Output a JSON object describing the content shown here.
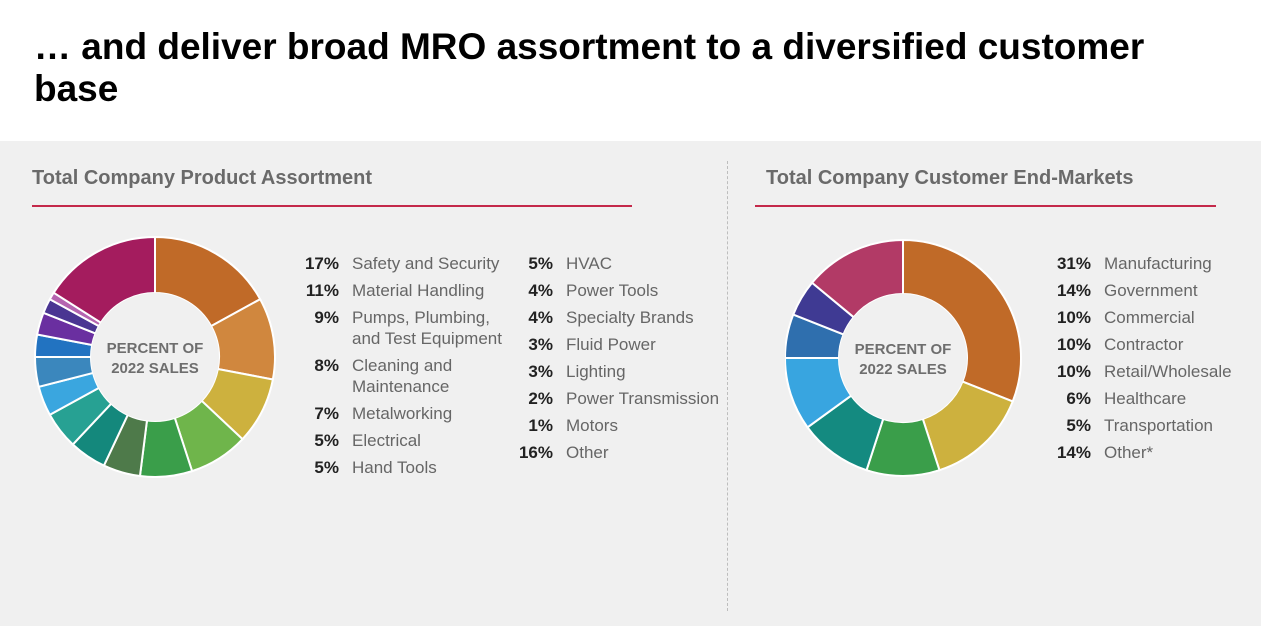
{
  "page": {
    "title": "… and deliver broad MRO assortment to a diversified customer base"
  },
  "chart_data": [
    {
      "type": "pie",
      "title": "Total Company Product Assortment",
      "center_label": [
        "PERCENT OF",
        "2022 SALES"
      ],
      "slices": [
        {
          "label": "Safety and Security",
          "pct_label": "17%",
          "value": 17,
          "color": "#c06a28"
        },
        {
          "label": "Material Handling",
          "pct_label": "11%",
          "value": 11,
          "color": "#d0873e"
        },
        {
          "label": "Pumps, Plumbing, and Test Equipment",
          "pct_label": "9%",
          "value": 9,
          "color": "#cdb13e"
        },
        {
          "label": "Cleaning and Maintenance",
          "pct_label": "8%",
          "value": 8,
          "color": "#6fb54b"
        },
        {
          "label": "Metalworking",
          "pct_label": "7%",
          "value": 7,
          "color": "#3a9e4a"
        },
        {
          "label": "Electrical",
          "pct_label": "5%",
          "value": 5,
          "color": "#4e7a4a"
        },
        {
          "label": "Hand Tools",
          "pct_label": "5%",
          "value": 5,
          "color": "#14887c"
        },
        {
          "label": "HVAC",
          "pct_label": "5%",
          "value": 5,
          "color": "#27a193"
        },
        {
          "label": "Power Tools",
          "pct_label": "4%",
          "value": 4,
          "color": "#3aa6df"
        },
        {
          "label": "Specialty Brands",
          "pct_label": "4%",
          "value": 4,
          "color": "#3b87bd"
        },
        {
          "label": "Fluid Power",
          "pct_label": "3%",
          "value": 3,
          "color": "#2273c1"
        },
        {
          "label": "Lighting",
          "pct_label": "3%",
          "value": 3,
          "color": "#6a2fa0"
        },
        {
          "label": "Power Transmission",
          "pct_label": "2%",
          "value": 2,
          "color": "#4a3592"
        },
        {
          "label": "Motors",
          "pct_label": "1%",
          "value": 1,
          "color": "#b565b0"
        },
        {
          "label": "Other",
          "pct_label": "16%",
          "value": 16,
          "color": "#a41c5e"
        }
      ]
    },
    {
      "type": "pie",
      "title": "Total Company Customer End-Markets",
      "center_label": [
        "PERCENT OF",
        "2022 SALES"
      ],
      "slices": [
        {
          "label": "Manufacturing",
          "pct_label": "31%",
          "value": 31,
          "color": "#c06a28"
        },
        {
          "label": "Government",
          "pct_label": "14%",
          "value": 14,
          "color": "#cdb13e"
        },
        {
          "label": "Commercial",
          "pct_label": "10%",
          "value": 10,
          "color": "#3a9e4a"
        },
        {
          "label": "Contractor",
          "pct_label": "10%",
          "value": 10,
          "color": "#148a80"
        },
        {
          "label": "Retail/Wholesale",
          "pct_label": "10%",
          "value": 10,
          "color": "#38a5e0"
        },
        {
          "label": "Healthcare",
          "pct_label": "6%",
          "value": 6,
          "color": "#2f6fae"
        },
        {
          "label": "Transportation",
          "pct_label": "5%",
          "value": 5,
          "color": "#3f3a93"
        },
        {
          "label": "Other*",
          "pct_label": "14%",
          "value": 14,
          "color": "#b23a66"
        }
      ]
    }
  ],
  "accent_color": "#c4294a"
}
